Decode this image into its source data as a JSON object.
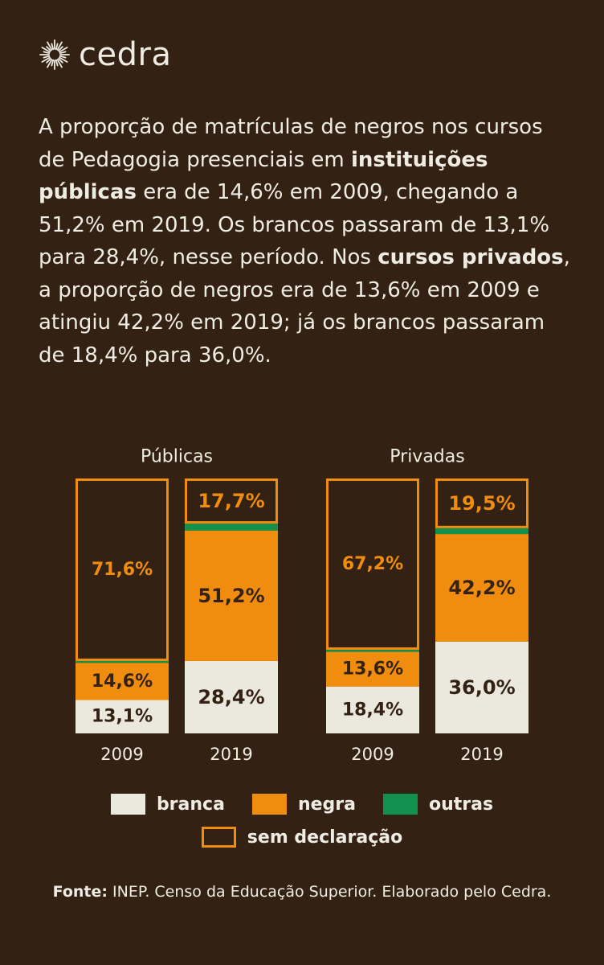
{
  "brand": {
    "name": "cedra",
    "logo_icon": "sun-icon"
  },
  "intro": {
    "p1": "A proporção de matrículas de negros nos cursos de Pedagogia presenciais em ",
    "b1": "instituições públicas",
    "p2": " era de 14,6% em 2009, chegando a 51,2% em 2019. Os brancos passaram de 13,1% para 28,4%, nesse período. Nos ",
    "b2": "cursos privados",
    "p3": ", a proporção de negros era de 13,6% em 2009 e atingiu 42,2% em 2019; já os brancos passaram de 18,4% para 36,0%."
  },
  "colors": {
    "background": "#332213",
    "branca": "#ebe8dd",
    "negra": "#f08d0e",
    "outras": "#11914d",
    "sem_declaracao": "#f08d0e",
    "text_light": "#efece3",
    "text_dark": "#332213"
  },
  "chart_data": {
    "type": "bar",
    "stacked": true,
    "groups": [
      {
        "title": "Públicas",
        "bars": [
          {
            "year": "2009",
            "values": {
              "branca": 13.1,
              "negra": 14.6,
              "outras": 0.7,
              "sem_declaracao": 71.6
            },
            "labels": {
              "branca": "13,1%",
              "negra": "14,6%",
              "sem_declaracao": "71,6%"
            }
          },
          {
            "year": "2019",
            "values": {
              "branca": 28.4,
              "negra": 51.2,
              "outras": 2.7,
              "sem_declaracao": 17.7
            },
            "labels": {
              "branca": "28,4%",
              "negra": "51,2%",
              "sem_declaracao": "17,7%"
            }
          }
        ]
      },
      {
        "title": "Privadas",
        "bars": [
          {
            "year": "2009",
            "values": {
              "branca": 18.4,
              "negra": 13.6,
              "outras": 0.8,
              "sem_declaracao": 67.2
            },
            "labels": {
              "branca": "18,4%",
              "negra": "13,6%",
              "sem_declaracao": "67,2%"
            }
          },
          {
            "year": "2019",
            "values": {
              "branca": 36.0,
              "negra": 42.2,
              "outras": 2.3,
              "sem_declaracao": 19.5
            },
            "labels": {
              "branca": "36,0%",
              "negra": "42,2%",
              "sem_declaracao": "19,5%"
            }
          }
        ]
      }
    ],
    "series": [
      {
        "key": "branca",
        "name": "branca"
      },
      {
        "key": "negra",
        "name": "negra"
      },
      {
        "key": "outras",
        "name": "outras"
      },
      {
        "key": "sem_declaracao",
        "name": "sem declaração"
      }
    ],
    "ylim": [
      0,
      100
    ],
    "grid": false,
    "legend_position": "bottom"
  },
  "source": {
    "label": "Fonte:",
    "text": " INEP. Censo da Educação Superior. Elaborado pelo Cedra."
  }
}
